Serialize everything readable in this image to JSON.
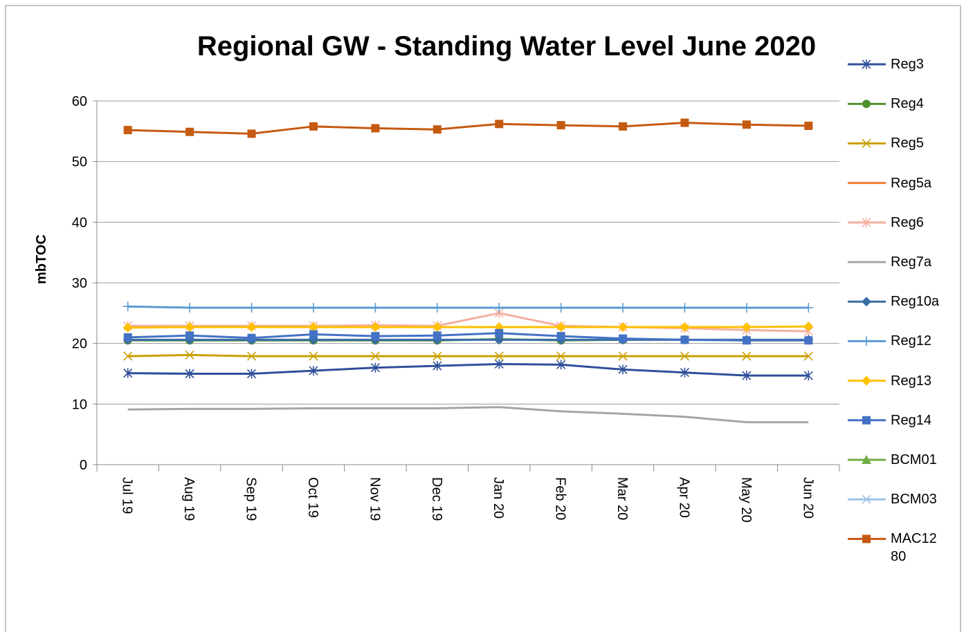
{
  "chart_data": {
    "type": "line",
    "title": "Regional GW -  Standing Water Level June 2020",
    "y_label": "mbTOC",
    "categories": [
      "Jul 19",
      "Aug 19",
      "Sep 19",
      "Oct 19",
      "Nov 19",
      "Dec 19",
      "Jan 20",
      "Feb 20",
      "Mar 20",
      "Apr 20",
      "May 20",
      "Jun 20"
    ],
    "ylim": [
      0,
      60
    ],
    "yticks": [
      0,
      10,
      20,
      30,
      40,
      50,
      60
    ],
    "grid": true,
    "legend": "right",
    "series": [
      {
        "name": "Reg3",
        "color": "#2f4f9a",
        "marker": "asterisk",
        "values": [
          15.1,
          15.0,
          15.0,
          15.5,
          16.0,
          16.3,
          16.6,
          16.5,
          15.7,
          15.2,
          14.7,
          14.7
        ]
      },
      {
        "name": "Reg4",
        "color": "#4f8f2f",
        "marker": "circle",
        "values": [
          20.5,
          20.5,
          20.5,
          20.5,
          20.5,
          20.5,
          20.7,
          20.5,
          20.6,
          20.6,
          20.5,
          20.5
        ]
      },
      {
        "name": "Reg5",
        "color": "#c9a000",
        "marker": "x",
        "values": [
          17.9,
          18.1,
          17.9,
          17.9,
          17.9,
          17.9,
          17.9,
          17.9,
          17.9,
          17.9,
          17.9,
          17.9
        ]
      },
      {
        "name": "Reg5a",
        "color": "#ed7d31",
        "marker": "none",
        "values": [
          null,
          null,
          null,
          null,
          null,
          null,
          null,
          null,
          null,
          null,
          null,
          null
        ]
      },
      {
        "name": "Reg6",
        "color": "#f4b0a0",
        "marker": "asterisk",
        "values": [
          22.9,
          22.9,
          22.9,
          22.9,
          23.0,
          22.9,
          25.0,
          22.9,
          22.7,
          22.5,
          22.2,
          22.0
        ]
      },
      {
        "name": "Reg7a",
        "color": "#a5a5a5",
        "marker": "none",
        "values": [
          9.1,
          9.2,
          9.2,
          9.3,
          9.3,
          9.3,
          9.5,
          8.8,
          8.4,
          7.9,
          7.0,
          7.0
        ]
      },
      {
        "name": "Reg10a",
        "color": "#3a6ea5",
        "marker": "diamond",
        "values": [
          20.6,
          20.6,
          20.6,
          20.6,
          20.6,
          20.6,
          20.6,
          20.6,
          20.6,
          20.6,
          20.6,
          20.6
        ]
      },
      {
        "name": "Reg12",
        "color": "#5b9bd5",
        "marker": "plus",
        "values": [
          26.1,
          25.9,
          25.9,
          25.9,
          25.9,
          25.9,
          25.9,
          25.9,
          25.9,
          25.9,
          25.9,
          25.9
        ]
      },
      {
        "name": "Reg13",
        "color": "#ffc000",
        "marker": "diamond",
        "values": [
          22.6,
          22.7,
          22.7,
          22.7,
          22.7,
          22.7,
          22.7,
          22.7,
          22.7,
          22.7,
          22.7,
          22.8
        ]
      },
      {
        "name": "Reg14",
        "color": "#4472c4",
        "marker": "square",
        "values": [
          21.0,
          21.3,
          20.9,
          21.5,
          21.2,
          21.3,
          21.7,
          21.2,
          20.8,
          20.6,
          20.5,
          20.5
        ]
      },
      {
        "name": "BCM01",
        "color": "#70ad47",
        "marker": "triangle",
        "values": [
          null,
          null,
          null,
          null,
          null,
          null,
          null,
          null,
          null,
          null,
          null,
          null
        ]
      },
      {
        "name": "BCM03",
        "color": "#9dc3e6",
        "marker": "x",
        "values": [
          null,
          null,
          null,
          null,
          null,
          null,
          null,
          null,
          null,
          null,
          null,
          null
        ]
      },
      {
        "name": "MAC1280",
        "color": "#c55a11",
        "marker": "square",
        "values": [
          55.2,
          54.9,
          54.6,
          55.8,
          55.5,
          55.3,
          56.2,
          56.0,
          55.8,
          56.4,
          56.1,
          55.9
        ]
      }
    ]
  }
}
